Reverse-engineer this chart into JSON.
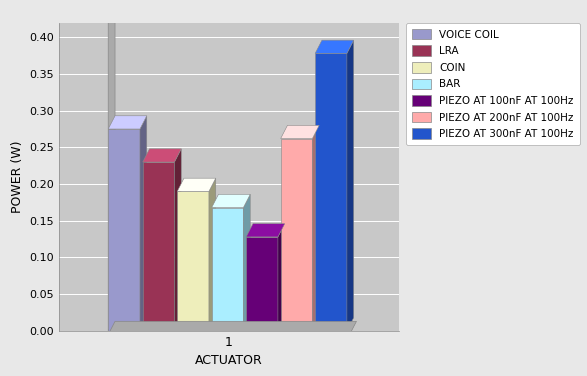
{
  "series": [
    {
      "label": "VOICE COIL",
      "value": 0.275,
      "color": "#9999CC"
    },
    {
      "label": "LRA",
      "value": 0.23,
      "color": "#993355"
    },
    {
      "label": "COIN",
      "value": 0.19,
      "color": "#EEEEBB"
    },
    {
      "label": "BAR",
      "value": 0.168,
      "color": "#AAEEFF"
    },
    {
      "label": "PIEZO AT 100nF AT 100Hz",
      "value": 0.128,
      "color": "#660077"
    },
    {
      "label": "PIEZO AT 200nF AT 100Hz",
      "value": 0.262,
      "color": "#FFAAAA"
    },
    {
      "label": "PIEZO AT 300nF AT 100Hz",
      "value": 0.378,
      "color": "#2255CC"
    }
  ],
  "xlabel": "ACTUATOR",
  "ylabel": "POWER (W)",
  "ylim": [
    0,
    0.42
  ],
  "yticks": [
    0,
    0.05,
    0.1,
    0.15,
    0.2,
    0.25,
    0.3,
    0.35,
    0.4
  ],
  "background_color": "#E8E8E8",
  "plot_bg_color": "#C8C8C8",
  "wall_color": "#BBBBBB",
  "floor_color": "#AAAAAA",
  "grid_color": "#FFFFFF",
  "figsize": [
    5.87,
    3.76
  ],
  "dpi": 100
}
